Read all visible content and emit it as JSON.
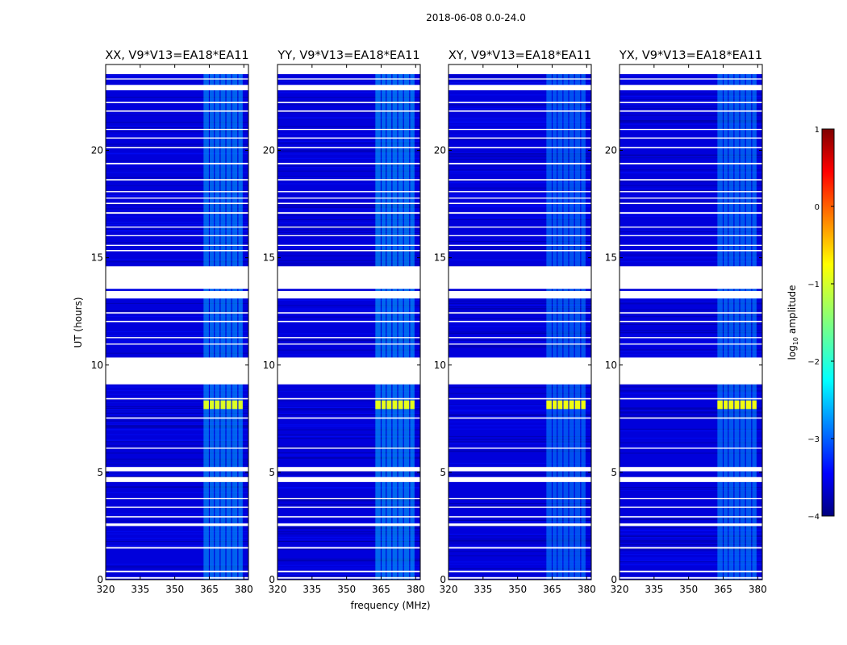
{
  "chart_data": {
    "type": "heatmap",
    "suptitle": "2018-06-08 0.0-24.0",
    "xlabel": "frequency (MHz)",
    "ylabel": "UT (hours)",
    "xlim": [
      320,
      382
    ],
    "ylim": [
      0,
      24
    ],
    "xticks": [
      320,
      335,
      350,
      365,
      380
    ],
    "xtick_labels": [
      "320",
      "335",
      "350",
      "365",
      "380"
    ],
    "yticks": [
      0,
      5,
      10,
      15,
      20
    ],
    "ytick_labels": [
      "0",
      "5",
      "10",
      "15",
      "20"
    ],
    "colorbar": {
      "label": "log10 amplitude",
      "label_base": "log",
      "label_sub": "10",
      "label_rest": " amplitude",
      "range": [
        -4,
        1
      ],
      "ticks": [
        -4,
        -3,
        -2,
        -1,
        0,
        1
      ],
      "tick_labels": [
        "−4",
        "−3",
        "−2",
        "−1",
        "0",
        "1"
      ],
      "colormap": "jet"
    },
    "background_level": -3.55,
    "flagged_gaps_hours": [
      [
        0.05,
        0.12
      ],
      [
        0.35,
        0.42
      ],
      [
        1.45,
        1.52
      ],
      [
        2.5,
        2.62
      ],
      [
        2.9,
        2.96
      ],
      [
        3.35,
        3.4
      ],
      [
        3.75,
        3.8
      ],
      [
        4.55,
        4.78
      ],
      [
        5.05,
        5.25
      ],
      [
        6.1,
        6.15
      ],
      [
        7.5,
        7.56
      ],
      [
        8.4,
        8.46
      ],
      [
        9.1,
        10.35
      ],
      [
        10.95,
        11.0
      ],
      [
        11.25,
        11.3
      ],
      [
        12.0,
        12.06
      ],
      [
        12.4,
        12.46
      ],
      [
        13.1,
        13.45
      ],
      [
        13.55,
        14.6
      ],
      [
        15.3,
        15.36
      ],
      [
        15.55,
        15.6
      ],
      [
        16.0,
        16.05
      ],
      [
        16.4,
        16.45
      ],
      [
        17.05,
        17.12
      ],
      [
        17.5,
        17.56
      ],
      [
        17.75,
        17.8
      ],
      [
        18.05,
        18.1
      ],
      [
        18.6,
        18.66
      ],
      [
        19.35,
        19.42
      ],
      [
        20.1,
        20.16
      ],
      [
        20.55,
        20.6
      ],
      [
        20.95,
        21.0
      ],
      [
        21.8,
        21.86
      ],
      [
        22.2,
        22.26
      ],
      [
        22.8,
        23.05
      ],
      [
        23.3,
        23.35
      ],
      [
        23.55,
        24.0
      ]
    ],
    "rfi_channels_mhz": [
      [
        362.5,
        364.8
      ],
      [
        365.2,
        367.0
      ],
      [
        367.4,
        369.5
      ],
      [
        369.9,
        372.0
      ],
      [
        372.4,
        374.5
      ],
      [
        374.9,
        377.2
      ],
      [
        377.6,
        379.5
      ]
    ],
    "panels": [
      {
        "title": "XX, V9*V13=EA18*EA11",
        "rfi_level": -2.5,
        "burst": {
          "t": [
            7.95,
            8.35
          ],
          "level": -1.05,
          "f": [
            362.5,
            379.5
          ]
        }
      },
      {
        "title": "YY, V9*V13=EA18*EA11",
        "rfi_level": -2.45,
        "burst": {
          "t": [
            7.95,
            8.35
          ],
          "level": -1.0,
          "f": [
            362.5,
            382.0
          ]
        }
      },
      {
        "title": "XY, V9*V13=EA18*EA11",
        "rfi_level": -2.65,
        "burst": {
          "t": [
            7.95,
            8.35
          ],
          "level": -0.95,
          "f": [
            362.5,
            379.5
          ]
        }
      },
      {
        "title": "YX, V9*V13=EA18*EA11",
        "rfi_level": -2.6,
        "burst": {
          "t": [
            7.95,
            8.35
          ],
          "level": -0.95,
          "f": [
            362.5,
            382.0
          ]
        }
      }
    ]
  }
}
